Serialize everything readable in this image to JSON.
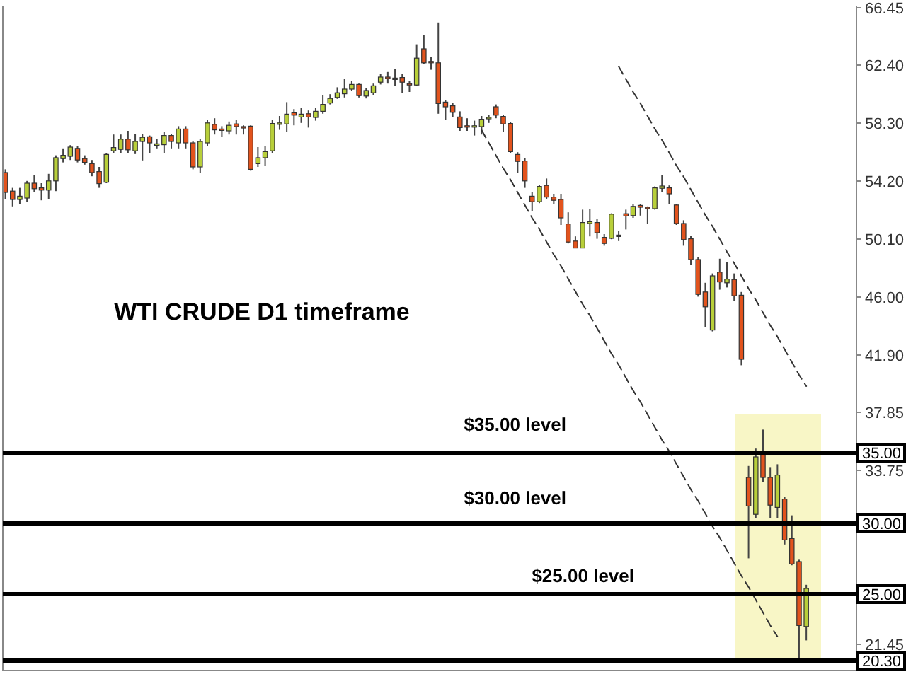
{
  "chart_data": {
    "type": "candlestick",
    "title": "WTI CRUDE D1 timeframe",
    "categories": [
      null,
      null,
      null,
      null,
      null,
      null,
      null,
      null,
      null,
      null,
      null,
      null,
      null,
      null,
      null,
      null,
      null,
      null,
      null,
      null,
      null,
      null,
      null,
      null,
      null,
      null,
      null,
      null,
      null,
      null,
      null,
      null,
      null,
      null,
      null,
      null,
      null,
      null,
      null,
      null,
      null,
      null,
      null,
      null,
      null,
      null,
      null,
      null,
      null,
      null,
      null,
      null,
      null,
      null,
      null,
      null,
      null,
      null,
      null,
      null,
      null,
      null,
      null,
      null,
      null,
      null,
      null,
      null,
      null,
      null,
      null,
      null,
      null,
      null,
      null,
      null,
      null,
      null,
      null,
      null,
      null,
      null,
      null,
      null,
      null,
      null,
      null,
      null,
      null,
      null,
      null,
      null,
      null,
      null,
      null,
      null,
      null,
      null,
      null,
      null,
      null,
      null,
      null,
      null,
      null,
      null,
      null,
      null,
      null,
      null,
      null,
      null
    ],
    "ylim": [
      19.6,
      66.6
    ],
    "yticks": [
      {
        "value": 66.45,
        "label": "66.45"
      },
      {
        "value": 62.4,
        "label": "62.40"
      },
      {
        "value": 58.3,
        "label": "58.30"
      },
      {
        "value": 54.2,
        "label": "54.20"
      },
      {
        "value": 50.1,
        "label": "50.10"
      },
      {
        "value": 46,
        "label": "46.00"
      },
      {
        "value": 41.9,
        "label": "41.90"
      },
      {
        "value": 37.85,
        "label": "37.85"
      },
      {
        "value": 33.75,
        "label": "33.75"
      },
      {
        "value": 21.45,
        "label": "21.45"
      }
    ],
    "tick_labels": "y",
    "ohlc": [
      [
        54.8,
        55.03,
        52.9,
        53.4
      ],
      [
        53.49,
        53.72,
        52.41,
        52.9
      ],
      [
        52.9,
        53.72,
        52.58,
        53.13
      ],
      [
        53.0,
        54.21,
        52.74,
        54.05
      ],
      [
        54.05,
        54.61,
        53.4,
        53.66
      ],
      [
        53.72,
        54.05,
        52.84,
        53.56
      ],
      [
        53.56,
        54.71,
        52.9,
        54.21
      ],
      [
        54.21,
        56.02,
        53.49,
        55.85
      ],
      [
        55.79,
        56.51,
        55.52,
        56.02
      ],
      [
        55.95,
        56.74,
        55.69,
        56.6
      ],
      [
        56.51,
        56.67,
        55.52,
        55.69
      ],
      [
        55.79,
        56.02,
        55.36,
        55.52
      ],
      [
        55.43,
        55.69,
        54.54,
        54.8
      ],
      [
        54.87,
        55.2,
        53.72,
        54.02
      ],
      [
        54.12,
        56.18,
        54.05,
        56.08
      ],
      [
        56.34,
        57.49,
        56.18,
        56.57
      ],
      [
        56.44,
        57.49,
        56.18,
        57.16
      ],
      [
        57.16,
        57.75,
        56.18,
        56.41
      ],
      [
        56.34,
        57.55,
        56.11,
        57.0
      ],
      [
        57.0,
        57.55,
        55.66,
        57.29
      ],
      [
        57.33,
        57.42,
        56.18,
        56.9
      ],
      [
        56.77,
        57.16,
        56.51,
        56.83
      ],
      [
        56.77,
        57.65,
        56.18,
        57.42
      ],
      [
        57.42,
        57.55,
        56.51,
        57.0
      ],
      [
        56.9,
        58.08,
        56.51,
        57.88
      ],
      [
        57.88,
        58.08,
        56.51,
        56.9
      ],
      [
        56.9,
        57.0,
        55.03,
        55.2
      ],
      [
        55.2,
        57.16,
        54.8,
        57.0
      ],
      [
        56.9,
        58.54,
        56.67,
        58.31
      ],
      [
        58.21,
        58.64,
        57.49,
        57.82
      ],
      [
        57.88,
        58.08,
        57.33,
        57.82
      ],
      [
        57.75,
        58.41,
        57.49,
        58.14
      ],
      [
        58.24,
        58.54,
        57.49,
        58.05
      ],
      [
        58.05,
        58.14,
        57.49,
        57.98
      ],
      [
        58.08,
        58.14,
        54.93,
        55.03
      ],
      [
        55.43,
        56.6,
        55.2,
        55.85
      ],
      [
        55.85,
        56.67,
        55.3,
        56.28
      ],
      [
        56.34,
        58.54,
        56.18,
        58.27
      ],
      [
        58.24,
        58.8,
        57.82,
        58.31
      ],
      [
        58.24,
        59.78,
        57.65,
        58.93
      ],
      [
        59.03,
        59.29,
        58.14,
        58.86
      ],
      [
        58.73,
        59.39,
        58.31,
        58.93
      ],
      [
        58.96,
        59.19,
        57.98,
        58.73
      ],
      [
        58.7,
        59.36,
        58.47,
        59.13
      ],
      [
        59.13,
        60.27,
        58.96,
        59.62
      ],
      [
        59.72,
        60.34,
        59.62,
        60.04
      ],
      [
        60.11,
        60.83,
        60.01,
        60.44
      ],
      [
        60.37,
        61.42,
        60.11,
        60.7
      ],
      [
        60.7,
        61.25,
        60.6,
        61.03
      ],
      [
        61.03,
        61.09,
        60.11,
        60.24
      ],
      [
        60.21,
        60.76,
        60.04,
        60.6
      ],
      [
        60.44,
        61.09,
        60.27,
        60.93
      ],
      [
        61.19,
        61.75,
        61.03,
        61.55
      ],
      [
        61.55,
        61.91,
        61.09,
        61.48
      ],
      [
        61.48,
        62.14,
        60.93,
        61.42
      ],
      [
        61.52,
        61.75,
        60.44,
        61.19
      ],
      [
        61.09,
        61.25,
        60.5,
        61.03
      ],
      [
        60.99,
        63.87,
        60.93,
        62.89
      ],
      [
        63.55,
        64.53,
        62.47,
        62.56
      ],
      [
        62.66,
        62.99,
        62.07,
        62.6
      ],
      [
        62.56,
        65.41,
        58.96,
        59.68
      ],
      [
        59.78,
        59.94,
        58.54,
        59.45
      ],
      [
        59.52,
        59.72,
        58.73,
        59.06
      ],
      [
        58.73,
        59.13,
        57.75,
        57.98
      ],
      [
        58.11,
        58.64,
        57.75,
        58.05
      ],
      [
        58.05,
        58.47,
        57.42,
        58.11
      ],
      [
        58.05,
        58.8,
        57.49,
        58.57
      ],
      [
        58.6,
        58.86,
        58.31,
        58.7
      ],
      [
        59.45,
        59.62,
        58.64,
        58.86
      ],
      [
        58.77,
        58.86,
        57.65,
        58.24
      ],
      [
        58.27,
        58.37,
        56.18,
        56.28
      ],
      [
        56.08,
        56.24,
        54.8,
        55.59
      ],
      [
        55.62,
        55.85,
        53.72,
        54.21
      ],
      [
        53.13,
        53.4,
        52.09,
        52.74
      ],
      [
        52.74,
        53.95,
        52.64,
        53.82
      ],
      [
        53.89,
        54.38,
        52.9,
        53.07
      ],
      [
        53.07,
        53.3,
        52.58,
        52.84
      ],
      [
        52.9,
        53.3,
        51.1,
        51.6
      ],
      [
        51.17,
        51.99,
        49.79,
        49.89
      ],
      [
        49.96,
        50.29,
        49.47,
        49.47
      ],
      [
        49.47,
        52.18,
        49.47,
        51.27
      ],
      [
        51.2,
        52.25,
        50.29,
        51.33
      ],
      [
        51.27,
        51.53,
        50.12,
        50.55
      ],
      [
        50.22,
        50.45,
        49.63,
        49.79
      ],
      [
        50.15,
        51.92,
        50.09,
        51.86
      ],
      [
        50.32,
        50.68,
        49.96,
        50.38
      ],
      [
        51.89,
        52.18,
        50.78,
        51.73
      ],
      [
        51.76,
        52.58,
        51.6,
        52.41
      ],
      [
        52.48,
        52.58,
        51.76,
        52.35
      ],
      [
        52.35,
        52.41,
        51.2,
        52.28
      ],
      [
        52.25,
        53.82,
        52.18,
        53.72
      ],
      [
        53.69,
        54.61,
        53.4,
        53.85
      ],
      [
        53.72,
        53.89,
        52.58,
        53.3
      ],
      [
        52.51,
        52.58,
        51.1,
        51.2
      ],
      [
        51.2,
        51.43,
        49.63,
        50.06
      ],
      [
        50.12,
        50.35,
        48.26,
        48.65
      ],
      [
        48.65,
        48.81,
        46.03,
        46.19
      ],
      [
        46.36,
        47.01,
        43.9,
        45.31
      ],
      [
        43.67,
        47.67,
        43.57,
        47.5
      ],
      [
        47.76,
        48.71,
        46.52,
        47.07
      ],
      [
        47.01,
        48.48,
        46.68,
        47.27
      ],
      [
        47.24,
        47.67,
        45.7,
        46.09
      ],
      [
        46.13,
        46.36,
        41.18,
        41.6
      ],
      [
        33.25,
        34.06,
        27.53,
        31.23
      ],
      [
        30.64,
        35.29,
        30.38,
        34.7
      ],
      [
        34.9,
        36.63,
        32.93,
        33.25
      ],
      [
        33.25,
        33.98,
        30.38,
        31.29
      ],
      [
        31.13,
        34.18,
        30.38,
        33.42
      ],
      [
        31.72,
        31.85,
        28.51,
        28.83
      ],
      [
        28.93,
        30.57,
        27.04,
        27.13
      ],
      [
        27.3,
        27.43,
        20.33,
        22.78
      ],
      [
        22.71,
        25.66,
        21.73,
        25.4
      ]
    ],
    "colors": [
      "#e2531d",
      "#e2531d",
      "#b8cf3a",
      "#b8cf3a",
      "#e2531d",
      "#e2531d",
      "#b8cf3a",
      "#b8cf3a",
      "#b8cf3a",
      "#b8cf3a",
      "#e2531d",
      "#e2531d",
      "#e2531d",
      "#e2531d",
      "#b8cf3a",
      "#b8cf3a",
      "#b8cf3a",
      "#e2531d",
      "#b8cf3a",
      "#b8cf3a",
      "#e2531d",
      "#b8cf3a",
      "#b8cf3a",
      "#e2531d",
      "#b8cf3a",
      "#e2531d",
      "#e2531d",
      "#b8cf3a",
      "#b8cf3a",
      "#e2531d",
      "#e2531d",
      "#b8cf3a",
      "#e2531d",
      "#e2531d",
      "#e2531d",
      "#b8cf3a",
      "#b8cf3a",
      "#b8cf3a",
      "#b8cf3a",
      "#b8cf3a",
      "#e2531d",
      "#b8cf3a",
      "#e2531d",
      "#b8cf3a",
      "#b8cf3a",
      "#b8cf3a",
      "#b8cf3a",
      "#b8cf3a",
      "#b8cf3a",
      "#e2531d",
      "#b8cf3a",
      "#b8cf3a",
      "#b8cf3a",
      "#e2531d",
      "#e2531d",
      "#e2531d",
      "#e2531d",
      "#b8cf3a",
      "#e2531d",
      "#e2531d",
      "#e2531d",
      "#e2531d",
      "#e2531d",
      "#e2531d",
      "#e2531d",
      "#b8cf3a",
      "#b8cf3a",
      "#b8cf3a",
      "#e2531d",
      "#e2531d",
      "#e2531d",
      "#e2531d",
      "#e2531d",
      "#e2531d",
      "#b8cf3a",
      "#e2531d",
      "#e2531d",
      "#e2531d",
      "#e2531d",
      "#e2531d",
      "#b8cf3a",
      "#b8cf3a",
      "#e2531d",
      "#e2531d",
      "#b8cf3a",
      "#b8cf3a",
      "#e2531d",
      "#b8cf3a",
      "#e2531d",
      "#e2531d",
      "#b8cf3a",
      "#b8cf3a",
      "#e2531d",
      "#e2531d",
      "#e2531d",
      "#e2531d",
      "#e2531d",
      "#e2531d",
      "#b8cf3a",
      "#e2531d",
      "#b8cf3a",
      "#e2531d",
      "#e2531d",
      "#e2531d",
      "#b8cf3a",
      "#e2531d",
      "#e2531d",
      "#b8cf3a",
      "#e2531d",
      "#e2531d",
      "#e2531d",
      "#b8cf3a"
    ],
    "series": [
      {
        "type": "line",
        "color": "#333333",
        "line_style": "dashed",
        "values": [
          null,
          null,
          null,
          null,
          null,
          null,
          null,
          null,
          null,
          null,
          null,
          null,
          null,
          null,
          null,
          null,
          null,
          null,
          null,
          null,
          null,
          null,
          null,
          null,
          null,
          null,
          null,
          null,
          null,
          null,
          null,
          null,
          null,
          null,
          null,
          null,
          null,
          null,
          null,
          null,
          null,
          null,
          null,
          null,
          null,
          null,
          null,
          null,
          null,
          null,
          null,
          null,
          null,
          null,
          null,
          null,
          null,
          null,
          null,
          null,
          null,
          null,
          null,
          null,
          null,
          null,
          57.8,
          56.9,
          56.0,
          55.1,
          54.3,
          53.4,
          52.5,
          51.6,
          50.8,
          49.9,
          49.0,
          48.2,
          47.3,
          46.4,
          45.5,
          44.7,
          43.8,
          42.9,
          42.0,
          41.2,
          40.3,
          39.4,
          38.6,
          37.7,
          36.8,
          35.9,
          35.1,
          34.2,
          33.3,
          32.4,
          31.6,
          30.7,
          29.8,
          29.0,
          28.1,
          27.2,
          26.3,
          25.5,
          24.6,
          23.7,
          22.8,
          22.0,
          null,
          null,
          null,
          null
        ]
      },
      {
        "type": "line",
        "color": "#333333",
        "line_style": "dashed",
        "values": [
          null,
          null,
          null,
          null,
          null,
          null,
          null,
          null,
          null,
          null,
          null,
          null,
          null,
          null,
          null,
          null,
          null,
          null,
          null,
          null,
          null,
          null,
          null,
          null,
          null,
          null,
          null,
          null,
          null,
          null,
          null,
          null,
          null,
          null,
          null,
          null,
          null,
          null,
          null,
          null,
          null,
          null,
          null,
          null,
          null,
          null,
          null,
          null,
          null,
          null,
          null,
          null,
          null,
          null,
          null,
          null,
          null,
          null,
          null,
          null,
          null,
          null,
          null,
          null,
          null,
          null,
          null,
          null,
          null,
          null,
          null,
          null,
          null,
          null,
          null,
          null,
          null,
          null,
          null,
          null,
          null,
          null,
          null,
          null,
          null,
          62.3,
          61.4,
          60.5,
          59.7,
          58.8,
          57.9,
          57.1,
          56.2,
          55.3,
          54.5,
          53.6,
          52.7,
          51.8,
          51.0,
          50.1,
          49.2,
          48.4,
          47.5,
          46.6,
          45.8,
          44.9,
          44.0,
          43.2,
          42.3,
          41.4,
          40.5,
          39.7
        ]
      }
    ],
    "ref_lines": [
      {
        "axis": "y",
        "value": 35,
        "label": "35.00",
        "color": "#000000"
      },
      {
        "axis": "y",
        "value": 30,
        "label": "30.00",
        "color": "#000000"
      },
      {
        "axis": "y",
        "value": 25,
        "label": "25.00",
        "color": "#000000"
      },
      {
        "axis": "y",
        "value": 20.3,
        "label": "20.30",
        "color": "#000000"
      }
    ],
    "annotations": [
      "$35.00 level",
      "$30.00 level",
      "$25.00 level"
    ]
  }
}
